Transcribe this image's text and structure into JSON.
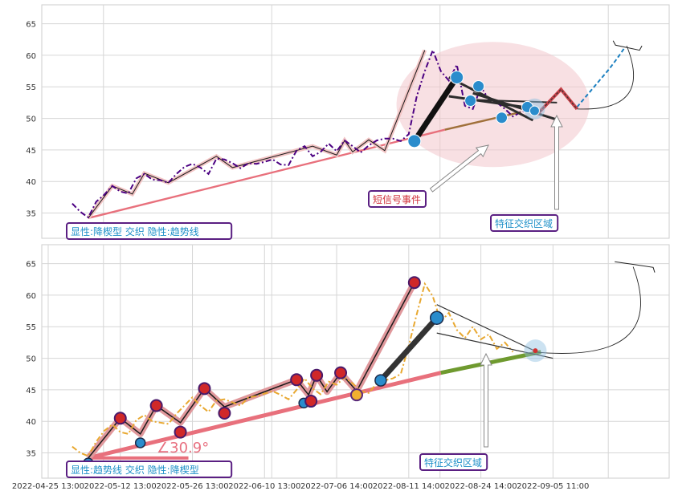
{
  "chart_data": [
    {
      "type": "line",
      "ylim": [
        31,
        68
      ],
      "yticks": [
        35,
        40,
        45,
        50,
        55,
        60,
        65
      ],
      "grid": true,
      "series": [
        {
          "name": "",
          "style": "dashdot",
          "color": "#4b0082",
          "points": [
            {
              "x": 0.0,
              "y": 36.5
            },
            {
              "x": 1.0,
              "y": 35.2
            },
            {
              "x": 2.0,
              "y": 34.3
            },
            {
              "x": 3.0,
              "y": 36.8
            },
            {
              "x": 4.0,
              "y": 37.9
            },
            {
              "x": 5.0,
              "y": 39.3
            },
            {
              "x": 6.0,
              "y": 38.4
            },
            {
              "x": 7.0,
              "y": 38.1
            },
            {
              "x": 8.0,
              "y": 40.5
            },
            {
              "x": 9.0,
              "y": 41.2
            },
            {
              "x": 10.0,
              "y": 40.3
            },
            {
              "x": 11.0,
              "y": 40.2
            },
            {
              "x": 12.0,
              "y": 39.8
            },
            {
              "x": 13.0,
              "y": 41.2
            },
            {
              "x": 14.0,
              "y": 42.3
            },
            {
              "x": 15.0,
              "y": 42.8
            },
            {
              "x": 16.0,
              "y": 42.2
            },
            {
              "x": 17.0,
              "y": 41.2
            },
            {
              "x": 18.0,
              "y": 43.6
            },
            {
              "x": 19.0,
              "y": 43.5
            },
            {
              "x": 20.0,
              "y": 42.9
            },
            {
              "x": 21.0,
              "y": 42.1
            },
            {
              "x": 22.0,
              "y": 42.9
            },
            {
              "x": 23.0,
              "y": 42.8
            },
            {
              "x": 24.0,
              "y": 43.1
            },
            {
              "x": 25.0,
              "y": 43.5
            },
            {
              "x": 26.0,
              "y": 42.7
            },
            {
              "x": 27.0,
              "y": 42.6
            },
            {
              "x": 28.0,
              "y": 44.9
            },
            {
              "x": 29.0,
              "y": 45.6
            },
            {
              "x": 30.0,
              "y": 44.0
            },
            {
              "x": 31.0,
              "y": 44.7
            },
            {
              "x": 32.0,
              "y": 46.0
            },
            {
              "x": 33.0,
              "y": 44.8
            },
            {
              "x": 34.0,
              "y": 46.5
            },
            {
              "x": 35.0,
              "y": 45.6
            },
            {
              "x": 36.0,
              "y": 44.6
            },
            {
              "x": 37.0,
              "y": 45.7
            },
            {
              "x": 38.0,
              "y": 46.5
            },
            {
              "x": 39.0,
              "y": 46.8
            },
            {
              "x": 40.0,
              "y": 46.8
            },
            {
              "x": 41.0,
              "y": 46.4
            },
            {
              "x": 42.0,
              "y": 47.5
            },
            {
              "x": 43.0,
              "y": 53.5
            },
            {
              "x": 44.0,
              "y": 57.5
            },
            {
              "x": 45.0,
              "y": 60.8
            },
            {
              "x": 46.0,
              "y": 57.5
            },
            {
              "x": 47.0,
              "y": 56.0
            },
            {
              "x": 48.0,
              "y": 58.5
            },
            {
              "x": 49.0,
              "y": 52.0
            },
            {
              "x": 50.0,
              "y": 51.5
            },
            {
              "x": 51.0,
              "y": 55.0
            },
            {
              "x": 52.0,
              "y": 53.0
            },
            {
              "x": 53.0,
              "y": 52.5
            },
            {
              "x": 54.0,
              "y": 51.5
            },
            {
              "x": 55.0,
              "y": 50.3
            },
            {
              "x": 56.0,
              "y": 51.0
            },
            {
              "x": 57.0,
              "y": 51.5
            },
            {
              "x": 58.0,
              "y": 51.0
            }
          ]
        },
        {
          "name": "",
          "style": "dashed",
          "color": "#1a7fc0",
          "points": [
            {
              "x": 63.0,
              "y": 51.8
            },
            {
              "x": 64.0,
              "y": 53.3
            },
            {
              "x": 65.0,
              "y": 54.8
            },
            {
              "x": 66.0,
              "y": 56.3
            },
            {
              "x": 67.0,
              "y": 57.8
            },
            {
              "x": 68.0,
              "y": 59.5
            },
            {
              "x": 69.0,
              "y": 61.3
            }
          ]
        }
      ],
      "labels": [
        {
          "text": "显性:降楔型 交织 隐性:趋势线",
          "color": "#1e90c8"
        },
        {
          "text": "短信号事件",
          "color": "#d0303a"
        },
        {
          "text": "特征交织区域",
          "color": "#1e90c8"
        }
      ]
    },
    {
      "type": "line",
      "ylim": [
        31,
        68
      ],
      "yticks": [
        35,
        40,
        45,
        50,
        55,
        60,
        65
      ],
      "grid": true,
      "x_tick_labels": [
        "2022-04-25 13:00",
        "2022-05-12 13:00",
        "2022-05-26 13:00",
        "2022-06-10 13:00",
        "2022-07-06 14:00",
        "2022-08-11 14:00",
        "2022-08-24 14:00",
        "2022-09-05 11:00"
      ],
      "series": [
        {
          "name": "",
          "style": "dashdot",
          "color": "#e8a830",
          "points": [
            {
              "x": 0.0,
              "y": 36.0
            },
            {
              "x": 1.0,
              "y": 35.0
            },
            {
              "x": 2.0,
              "y": 34.5
            },
            {
              "x": 3.0,
              "y": 36.8
            },
            {
              "x": 4.0,
              "y": 38.5
            },
            {
              "x": 5.0,
              "y": 39.5
            },
            {
              "x": 6.0,
              "y": 38.3
            },
            {
              "x": 7.0,
              "y": 38.0
            },
            {
              "x": 8.0,
              "y": 40.2
            },
            {
              "x": 9.0,
              "y": 41.0
            },
            {
              "x": 10.0,
              "y": 40.0
            },
            {
              "x": 11.0,
              "y": 39.8
            },
            {
              "x": 12.0,
              "y": 39.6
            },
            {
              "x": 13.0,
              "y": 41.2
            },
            {
              "x": 14.0,
              "y": 42.5
            },
            {
              "x": 15.0,
              "y": 43.8
            },
            {
              "x": 16.0,
              "y": 42.5
            },
            {
              "x": 17.0,
              "y": 41.5
            },
            {
              "x": 18.0,
              "y": 43.3
            },
            {
              "x": 19.0,
              "y": 43.5
            },
            {
              "x": 20.0,
              "y": 43.0
            },
            {
              "x": 21.0,
              "y": 42.5
            },
            {
              "x": 22.0,
              "y": 43.8
            },
            {
              "x": 23.0,
              "y": 44.0
            },
            {
              "x": 24.0,
              "y": 44.4
            },
            {
              "x": 25.0,
              "y": 44.8
            },
            {
              "x": 26.0,
              "y": 44.2
            },
            {
              "x": 27.0,
              "y": 43.5
            },
            {
              "x": 28.0,
              "y": 45.0
            },
            {
              "x": 29.0,
              "y": 46.8
            },
            {
              "x": 30.0,
              "y": 45.2
            },
            {
              "x": 31.0,
              "y": 44.3
            },
            {
              "x": 32.0,
              "y": 46.3
            },
            {
              "x": 33.0,
              "y": 45.8
            },
            {
              "x": 34.0,
              "y": 47.0
            },
            {
              "x": 35.0,
              "y": 46.0
            },
            {
              "x": 36.0,
              "y": 44.8
            },
            {
              "x": 37.0,
              "y": 44.5
            },
            {
              "x": 38.0,
              "y": 46.0
            },
            {
              "x": 39.0,
              "y": 46.5
            },
            {
              "x": 40.0,
              "y": 46.8
            },
            {
              "x": 41.0,
              "y": 47.5
            },
            {
              "x": 42.0,
              "y": 52.0
            },
            {
              "x": 43.0,
              "y": 57.0
            },
            {
              "x": 44.0,
              "y": 61.8
            },
            {
              "x": 45.0,
              "y": 59.8
            },
            {
              "x": 46.0,
              "y": 55.8
            },
            {
              "x": 47.0,
              "y": 57.2
            },
            {
              "x": 48.0,
              "y": 54.5
            },
            {
              "x": 49.0,
              "y": 53.2
            },
            {
              "x": 50.0,
              "y": 55.0
            },
            {
              "x": 51.0,
              "y": 53.0
            },
            {
              "x": 52.0,
              "y": 53.8
            },
            {
              "x": 53.0,
              "y": 51.5
            },
            {
              "x": 54.0,
              "y": 52.5
            },
            {
              "x": 55.0,
              "y": 51.0
            }
          ]
        }
      ],
      "labels": [
        {
          "text": "显性:趋势线 交织 隐性:降楔型",
          "color": "#1e90c8"
        },
        {
          "text": "特征交织区域",
          "color": "#1e90c8"
        },
        {
          "text": "∠30.9°",
          "color": "#e87080"
        }
      ]
    }
  ]
}
